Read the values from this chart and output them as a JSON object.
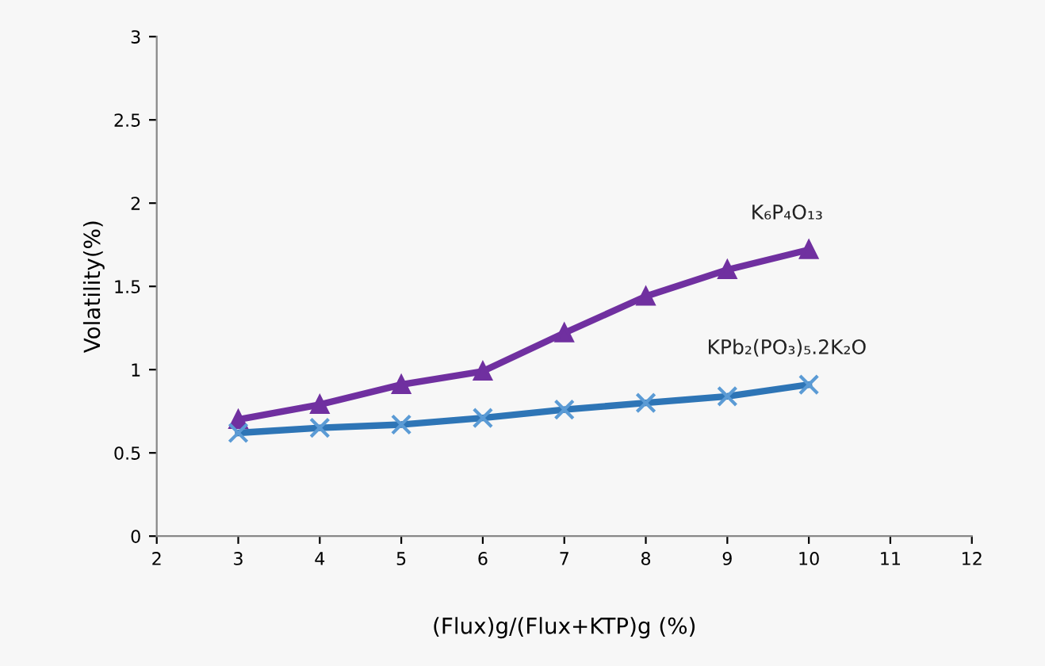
{
  "chart_data": {
    "type": "line",
    "xlabel": "(Flux)g/(Flux+KTP)g (%)",
    "ylabel": "Volatility(%)",
    "x": [
      3,
      4,
      5,
      6,
      7,
      8,
      9,
      10
    ],
    "series": [
      {
        "name": "K₆P₄O₁₃",
        "color": "#7030a0",
        "marker": "triangle",
        "values": [
          0.7,
          0.79,
          0.91,
          0.99,
          1.22,
          1.44,
          1.6,
          1.72
        ]
      },
      {
        "name": "KPb₂(PO₃)₅.2K₂O",
        "color": "#2e75b6",
        "marker": "cross",
        "values": [
          0.62,
          0.65,
          0.67,
          0.71,
          0.76,
          0.8,
          0.84,
          0.91
        ]
      }
    ],
    "xlim": [
      2,
      12
    ],
    "xticks": [
      2,
      3,
      4,
      5,
      6,
      7,
      8,
      9,
      10,
      11,
      12
    ],
    "ylim": [
      0,
      3
    ],
    "yticks": [
      0,
      0.5,
      1,
      1.5,
      2,
      2.5,
      3
    ],
    "grid": false,
    "legend": false,
    "line_style": "solid"
  }
}
